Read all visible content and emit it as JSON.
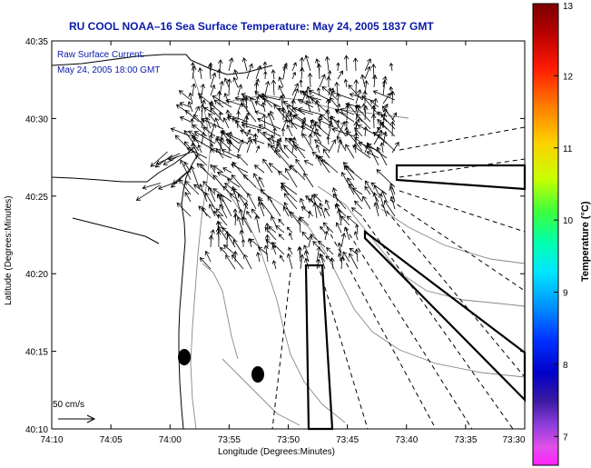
{
  "title": "RU COOL  NOAA–16  Sea Surface Temperature:  May 24, 2005 1837 GMT",
  "annotation": {
    "line1": "Raw Surface Current:",
    "line2": "May 24, 2005 18:00 GMT"
  },
  "scale_label": "50 cm/s",
  "x_axis": {
    "label": "Longitude (Degrees:Minutes)",
    "ticks": [
      "74:10",
      "74:05",
      "74:00",
      "73:55",
      "73:50",
      "73:45",
      "73:40",
      "73:35",
      "73:30"
    ]
  },
  "y_axis": {
    "label": "Latitude (Degrees:Minutes)",
    "ticks": [
      "40:35",
      "40:30",
      "40:25",
      "40:20",
      "40:15",
      "40:10"
    ]
  },
  "colorbar": {
    "label": "Temperature (°C)",
    "ticks": [
      "13",
      "12",
      "11",
      "10",
      "9",
      "8",
      "7"
    ],
    "range": [
      6.6,
      13
    ]
  }
}
